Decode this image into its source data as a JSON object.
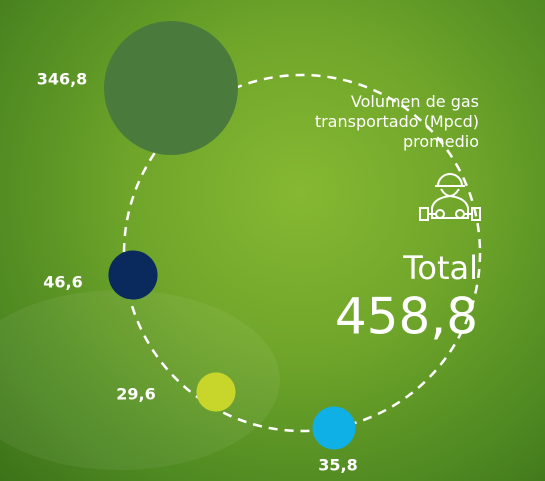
{
  "chart_data": {
    "type": "bubble",
    "title": "Volumen de gas transportado (Mpcd) promedio",
    "total_label": "Total",
    "total": 458.8,
    "total_value_label": "458,8",
    "values": [
      346.8,
      46.6,
      29.6,
      35.8
    ],
    "value_labels": [
      "346,8",
      "46,6",
      "29,6",
      "35,8"
    ],
    "colors": [
      "#4a7a3c",
      "#0a2a5e",
      "#c8d62b",
      "#0fb0e6"
    ]
  }
}
